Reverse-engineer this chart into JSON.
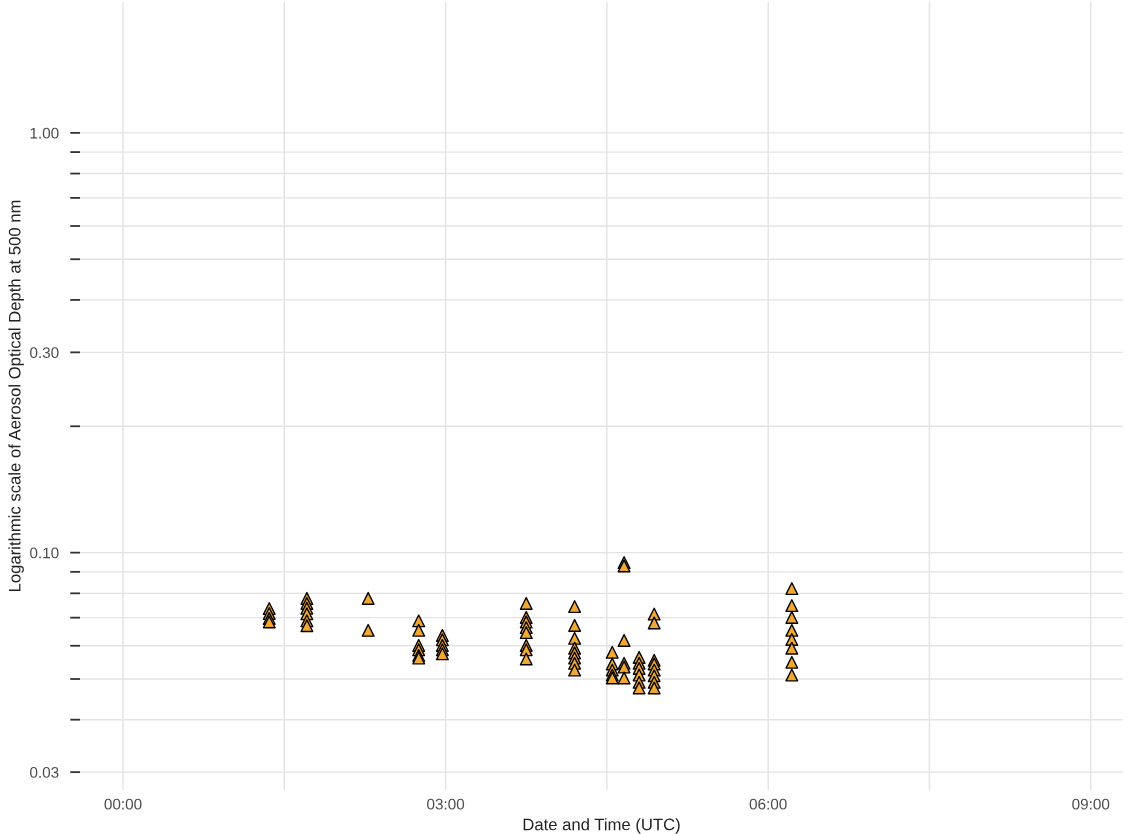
{
  "chart_data": {
    "type": "scatter",
    "xlabel": "Date and Time (UTC)",
    "ylabel": "Logarithmic scale of Aerosol Optical Depth at 500 nm",
    "log": "y",
    "grid": true,
    "marker": "triangle",
    "legend": false,
    "xlim": [
      -0.4,
      9.3
    ],
    "ylim": [
      0.0272,
      2.05
    ],
    "xticks": [
      {
        "value": 0,
        "label": "00:00"
      },
      {
        "value": 1.5,
        "label": null
      },
      {
        "value": 3,
        "label": "03:00"
      },
      {
        "value": 4.5,
        "label": null
      },
      {
        "value": 6,
        "label": "06:00"
      },
      {
        "value": 7.5,
        "label": null
      },
      {
        "value": 9,
        "label": "09:00"
      }
    ],
    "yticks": [
      {
        "value": 0.03,
        "label": "0.03"
      },
      {
        "value": 0.04,
        "label": null
      },
      {
        "value": 0.05,
        "label": null
      },
      {
        "value": 0.06,
        "label": null
      },
      {
        "value": 0.07,
        "label": null
      },
      {
        "value": 0.08,
        "label": null
      },
      {
        "value": 0.09,
        "label": null
      },
      {
        "value": 0.1,
        "label": "0.10"
      },
      {
        "value": 0.2,
        "label": null
      },
      {
        "value": 0.3,
        "label": "0.30"
      },
      {
        "value": 0.4,
        "label": null
      },
      {
        "value": 0.5,
        "label": null
      },
      {
        "value": 0.6,
        "label": null
      },
      {
        "value": 0.7,
        "label": null
      },
      {
        "value": 0.8,
        "label": null
      },
      {
        "value": 0.9,
        "label": null
      },
      {
        "value": 1.0,
        "label": "1.00"
      }
    ],
    "series": [
      {
        "color": "#f0a830",
        "x": [
          1.36,
          1.36,
          1.36,
          1.36,
          1.71,
          1.71,
          1.71,
          1.71,
          1.71,
          1.71,
          2.28,
          2.28,
          2.75,
          2.75,
          2.75,
          2.75,
          2.75,
          2.75,
          2.97,
          2.97,
          2.97,
          2.97,
          2.97,
          3.75,
          3.75,
          3.75,
          3.75,
          3.75,
          3.75,
          3.75,
          3.75,
          4.2,
          4.2,
          4.2,
          4.2,
          4.2,
          4.2,
          4.2,
          4.2,
          4.55,
          4.55,
          4.55,
          4.55,
          4.55,
          4.66,
          4.66,
          4.66,
          4.66,
          4.66,
          4.66,
          4.8,
          4.8,
          4.8,
          4.8,
          4.8,
          4.8,
          4.94,
          4.94,
          4.94,
          4.94,
          4.94,
          4.94,
          4.94,
          4.94,
          6.22,
          6.22,
          6.22,
          6.22,
          6.22,
          6.22,
          6.22,
          6.22
        ],
        "values": [
          0.0736,
          0.0716,
          0.0697,
          0.0684,
          0.0778,
          0.0757,
          0.0737,
          0.0715,
          0.0688,
          0.067,
          0.0778,
          0.0653,
          0.0688,
          0.0653,
          0.0601,
          0.0587,
          0.0569,
          0.0561,
          0.0635,
          0.062,
          0.0601,
          0.0587,
          0.0574,
          0.0757,
          0.0701,
          0.0684,
          0.0663,
          0.0645,
          0.0601,
          0.0587,
          0.0558,
          0.0744,
          0.0671,
          0.0625,
          0.0592,
          0.0577,
          0.0561,
          0.0545,
          0.0525,
          0.0579,
          0.0543,
          0.0525,
          0.0511,
          0.0503,
          0.0947,
          0.093,
          0.0618,
          0.0545,
          0.0534,
          0.0503,
          0.0563,
          0.0545,
          0.053,
          0.0511,
          0.0491,
          0.0476,
          0.0714,
          0.068,
          0.0554,
          0.0543,
          0.0525,
          0.0509,
          0.0491,
          0.0476,
          0.0821,
          0.0748,
          0.0701,
          0.0653,
          0.0621,
          0.0592,
          0.0548,
          0.0511
        ]
      }
    ]
  }
}
